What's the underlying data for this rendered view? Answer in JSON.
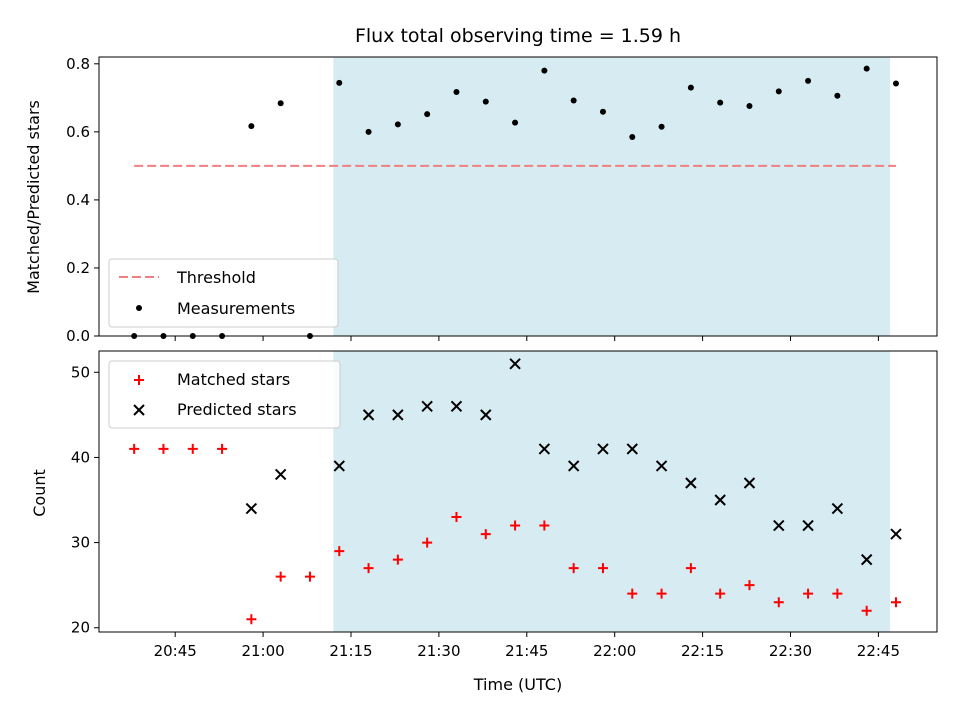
{
  "chart_data": {
    "type": "scatter",
    "title": "Flux total observing time = 1.59 h",
    "xlabel": "Time (UTC)",
    "x_ticks": [
      "20:45",
      "21:00",
      "21:15",
      "21:30",
      "21:45",
      "22:00",
      "22:15",
      "22:30",
      "22:45"
    ],
    "x_tick_minutes": [
      1245,
      1260,
      1275,
      1290,
      1305,
      1320,
      1335,
      1350,
      1365
    ],
    "xlim": [
      "20:32",
      "22:55"
    ],
    "times": [
      "20:38",
      "20:43",
      "20:48",
      "20:53",
      "20:58",
      "21:03",
      "21:08",
      "21:13",
      "21:18",
      "21:23",
      "21:28",
      "21:33",
      "21:38",
      "21:43",
      "21:48",
      "21:53",
      "21:58",
      "22:03",
      "22:08",
      "22:13",
      "22:18",
      "22:23",
      "22:28",
      "22:33",
      "22:38",
      "22:43",
      "22:48"
    ],
    "highlight_span": [
      "21:12",
      "22:47"
    ],
    "highlight_color": "#add8e6",
    "top": {
      "ylabel": "Matched/Predicted stars",
      "ylim": [
        0,
        0.82
      ],
      "y_ticks": [
        "0.0",
        "0.2",
        "0.4",
        "0.6",
        "0.8"
      ],
      "y_tick_values": [
        0,
        0.2,
        0.4,
        0.6,
        0.8
      ],
      "threshold": {
        "name": "Threshold",
        "value": 0.5,
        "from": "20:38",
        "to": "22:48",
        "color": "#f08080"
      },
      "measurements": {
        "name": "Measurements",
        "color": "#000000",
        "values": [
          0,
          0,
          0,
          0,
          0.617,
          0.684,
          0,
          0.744,
          0.6,
          0.622,
          0.652,
          0.717,
          0.689,
          0.627,
          0.78,
          0.692,
          0.659,
          0.585,
          0.615,
          0.73,
          0.686,
          0.676,
          0.719,
          0.75,
          0.706,
          0.786,
          0.742
        ]
      }
    },
    "bottom": {
      "ylabel": "Count",
      "ylim": [
        19.5,
        52.5
      ],
      "y_ticks": [
        "20",
        "30",
        "40",
        "50"
      ],
      "y_tick_values": [
        20,
        30,
        40,
        50
      ],
      "series": [
        {
          "name": "Matched stars",
          "marker": "plus",
          "color": "#ff0000",
          "values": [
            41,
            41,
            41,
            41,
            21,
            26,
            26,
            29,
            27,
            28,
            30,
            33,
            31,
            32,
            32,
            27,
            27,
            24,
            24,
            27,
            24,
            25,
            23,
            24,
            24,
            22,
            23
          ]
        },
        {
          "name": "Predicted stars",
          "marker": "x",
          "color": "#000000",
          "values": [
            null,
            null,
            null,
            null,
            34,
            38,
            null,
            39,
            45,
            45,
            46,
            46,
            45,
            51,
            41,
            39,
            41,
            41,
            39,
            37,
            35,
            37,
            32,
            32,
            34,
            28,
            31
          ]
        }
      ]
    }
  }
}
